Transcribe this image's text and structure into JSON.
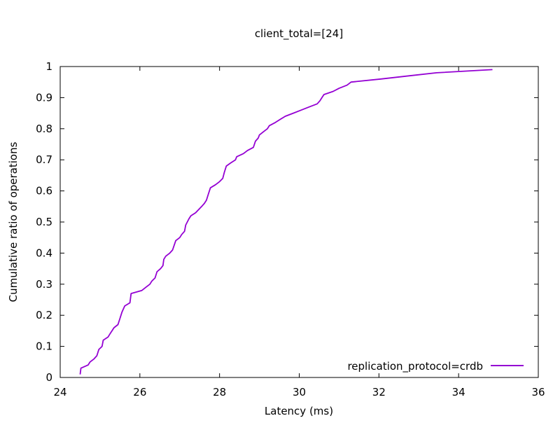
{
  "chart_data": {
    "type": "line",
    "title": "client_total=[24]",
    "xlabel": "Latency (ms)",
    "ylabel": "Cumulative ratio of operations",
    "xlim": [
      24,
      36
    ],
    "ylim": [
      0,
      1
    ],
    "x_ticks": [
      24,
      26,
      28,
      30,
      32,
      34,
      36
    ],
    "y_ticks": [
      0,
      0.1,
      0.2,
      0.3,
      0.4,
      0.5,
      0.6,
      0.7,
      0.8,
      0.9,
      1
    ],
    "x_tick_labels": [
      "24",
      "26",
      "28",
      "30",
      "32",
      "34",
      "36"
    ],
    "y_tick_labels": [
      "0",
      "0.1",
      "0.2",
      "0.3",
      "0.4",
      "0.5",
      "0.6",
      "0.7",
      "0.8",
      "0.9",
      "1"
    ],
    "grid": false,
    "legend_position": "bottom-right",
    "series": [
      {
        "name": "replication_protocol=crdb",
        "color": "#9400d3",
        "points": [
          [
            24.5,
            0.01
          ],
          [
            24.52,
            0.03
          ],
          [
            24.7,
            0.04
          ],
          [
            24.75,
            0.05
          ],
          [
            24.85,
            0.06
          ],
          [
            24.92,
            0.07
          ],
          [
            24.97,
            0.09
          ],
          [
            25.05,
            0.1
          ],
          [
            25.08,
            0.12
          ],
          [
            25.2,
            0.13
          ],
          [
            25.25,
            0.14
          ],
          [
            25.3,
            0.15
          ],
          [
            25.35,
            0.16
          ],
          [
            25.45,
            0.17
          ],
          [
            25.5,
            0.19
          ],
          [
            25.55,
            0.21
          ],
          [
            25.62,
            0.23
          ],
          [
            25.75,
            0.24
          ],
          [
            25.78,
            0.27
          ],
          [
            26.05,
            0.28
          ],
          [
            26.15,
            0.29
          ],
          [
            26.25,
            0.3
          ],
          [
            26.3,
            0.31
          ],
          [
            26.38,
            0.32
          ],
          [
            26.43,
            0.34
          ],
          [
            26.52,
            0.35
          ],
          [
            26.58,
            0.36
          ],
          [
            26.6,
            0.38
          ],
          [
            26.65,
            0.39
          ],
          [
            26.75,
            0.4
          ],
          [
            26.82,
            0.41
          ],
          [
            26.9,
            0.44
          ],
          [
            27.0,
            0.45
          ],
          [
            27.05,
            0.46
          ],
          [
            27.12,
            0.47
          ],
          [
            27.15,
            0.49
          ],
          [
            27.23,
            0.51
          ],
          [
            27.28,
            0.52
          ],
          [
            27.4,
            0.53
          ],
          [
            27.55,
            0.55
          ],
          [
            27.62,
            0.56
          ],
          [
            27.67,
            0.57
          ],
          [
            27.72,
            0.59
          ],
          [
            27.77,
            0.61
          ],
          [
            27.9,
            0.62
          ],
          [
            28.0,
            0.63
          ],
          [
            28.08,
            0.64
          ],
          [
            28.12,
            0.66
          ],
          [
            28.17,
            0.68
          ],
          [
            28.28,
            0.69
          ],
          [
            28.4,
            0.7
          ],
          [
            28.43,
            0.71
          ],
          [
            28.6,
            0.72
          ],
          [
            28.7,
            0.73
          ],
          [
            28.85,
            0.74
          ],
          [
            28.9,
            0.76
          ],
          [
            28.97,
            0.77
          ],
          [
            29.0,
            0.78
          ],
          [
            29.1,
            0.79
          ],
          [
            29.2,
            0.8
          ],
          [
            29.25,
            0.81
          ],
          [
            29.4,
            0.82
          ],
          [
            29.52,
            0.83
          ],
          [
            29.65,
            0.84
          ],
          [
            29.85,
            0.85
          ],
          [
            30.05,
            0.86
          ],
          [
            30.25,
            0.87
          ],
          [
            30.45,
            0.88
          ],
          [
            30.52,
            0.89
          ],
          [
            30.57,
            0.9
          ],
          [
            30.62,
            0.91
          ],
          [
            30.85,
            0.92
          ],
          [
            31.0,
            0.93
          ],
          [
            31.2,
            0.94
          ],
          [
            31.3,
            0.95
          ],
          [
            32.05,
            0.96
          ],
          [
            32.75,
            0.97
          ],
          [
            33.45,
            0.98
          ],
          [
            34.85,
            0.99
          ]
        ]
      }
    ]
  }
}
